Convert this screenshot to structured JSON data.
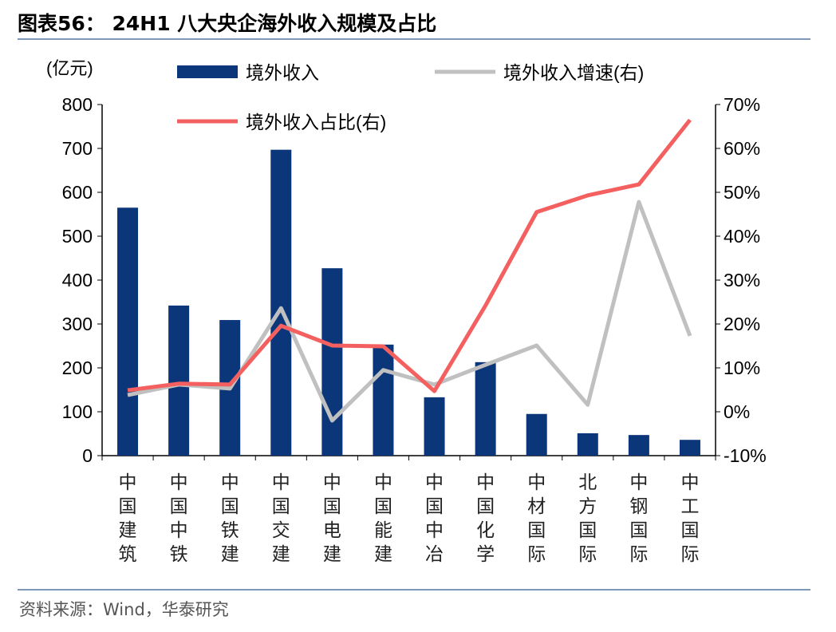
{
  "title": "图表56：  24H1 八大央企海外收入规模及占比",
  "source": "资料来源：Wind，华泰研究",
  "chart_data": {
    "type": "bar+line",
    "title": "",
    "left_unit": "(亿元)",
    "categories": [
      "中国建筑",
      "中国中铁",
      "中国铁建",
      "中国交建",
      "中国电建",
      "中国能建",
      "中国中冶",
      "中国化学",
      "中材国际",
      "北方国际",
      "中钢国际",
      "中工国际"
    ],
    "left_axis": {
      "min": 0,
      "max": 800,
      "ticks": [
        0,
        100,
        200,
        300,
        400,
        500,
        600,
        700,
        800
      ]
    },
    "right_axis": {
      "min": -10,
      "max": 70,
      "ticks": [
        "-10%",
        "0%",
        "10%",
        "20%",
        "30%",
        "40%",
        "50%",
        "60%",
        "70%"
      ]
    },
    "grid": false,
    "legend_placement": "top",
    "series": [
      {
        "name": "境外收入",
        "kind": "bar",
        "axis": "left",
        "color": "#0b3679",
        "values": [
          565,
          342,
          309,
          697,
          427,
          253,
          133,
          213,
          95,
          51,
          47,
          36
        ]
      },
      {
        "name": "境外收入增速(右)",
        "kind": "line",
        "axis": "right",
        "color": "#c0c0c0",
        "values": [
          3.8,
          6.2,
          5.3,
          23.6,
          -2.0,
          9.5,
          6.2,
          10.7,
          15.1,
          1.6,
          47.8,
          17.3
        ]
      },
      {
        "name": "境外收入占比(右)",
        "kind": "line",
        "axis": "right",
        "color": "#f4605f",
        "values": [
          4.9,
          6.4,
          6.2,
          19.6,
          15.1,
          14.9,
          4.7,
          24.2,
          45.5,
          49.3,
          51.8,
          66.5
        ]
      }
    ]
  }
}
